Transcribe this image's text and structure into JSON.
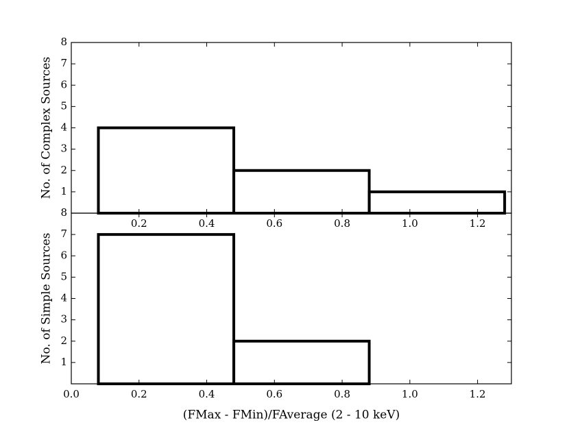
{
  "chart_data": [
    {
      "type": "histogram",
      "ylabel": "No. of Complex Sources",
      "bins": [
        0.08,
        0.48,
        0.88,
        1.28
      ],
      "values": [
        4,
        2,
        1
      ],
      "color": "#000000",
      "xlim": [
        0,
        1.3
      ],
      "xticks": [
        0.2,
        0.4,
        0.6,
        0.8,
        1.0,
        1.2
      ],
      "ylim": [
        0,
        8
      ],
      "yticks": [
        1,
        2,
        3,
        4,
        5,
        6,
        7,
        8
      ]
    },
    {
      "type": "histogram",
      "ylabel": "No. of Simple Sources",
      "xlabel": "(FMax - FMin)/FAverage (2 - 10 keV)",
      "bins": [
        0.08,
        0.48,
        0.88,
        1.28
      ],
      "values": [
        7,
        2,
        0
      ],
      "color": "#000000",
      "xlim": [
        0,
        1.3
      ],
      "xticks": [
        0.0,
        0.2,
        0.4,
        0.6,
        0.8,
        1.0,
        1.2
      ],
      "ylim": [
        0,
        8
      ],
      "yticks": [
        1,
        2,
        3,
        4,
        5,
        6,
        7,
        8
      ]
    }
  ]
}
